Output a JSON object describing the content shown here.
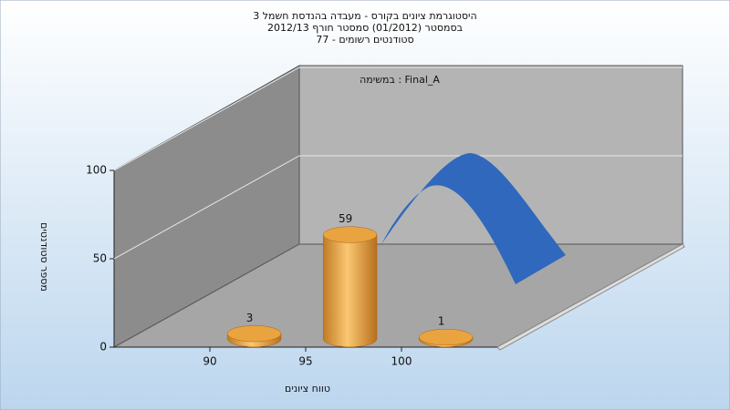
{
  "chart_data": {
    "type": "histogram",
    "title": "היסטוגרמת ציונים בקורס - מעבדה בהנדסת חשמל 3",
    "subtitle": "בסמסטר  (01/2012)  סמסטר חורף 2012/13",
    "subtitle2": "סטודנטים רשומים - 77",
    "annotation": "במשימה : Final_A",
    "x_label": "טווח ציונים",
    "y_label": "מספר סטודנטים",
    "bins": [
      90,
      95,
      100,
      105
    ],
    "counts": [
      3,
      59,
      1
    ],
    "color": "#e9a440",
    "xlim": [
      85,
      105
    ],
    "xticks": [
      90,
      95,
      100
    ],
    "ylim": [
      0,
      100
    ],
    "yticks": [
      0,
      50,
      100
    ],
    "grid": true
  }
}
